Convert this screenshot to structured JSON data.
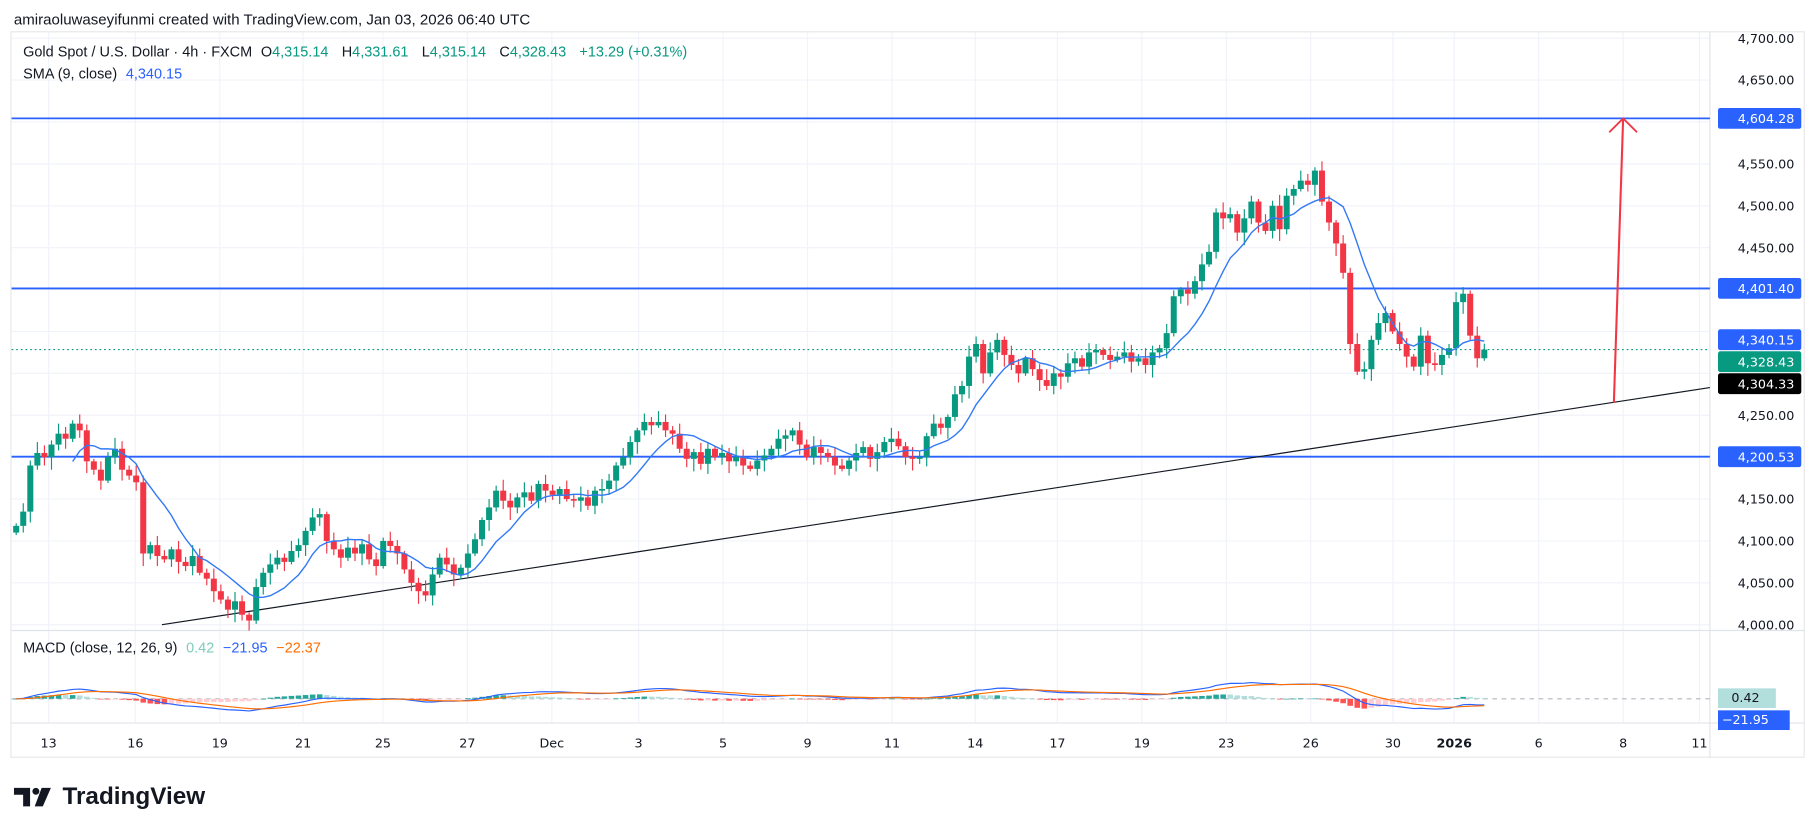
{
  "credit": "amiraoluwaseyifunmi created with TradingView.com, Jan 03, 2026 06:40 UTC",
  "legend": {
    "symbol": "Gold Spot / U.S. Dollar · 4h · FXCM",
    "o_label": "O",
    "o": "4,315.14",
    "h_label": "H",
    "h": "4,331.61",
    "l_label": "L",
    "l": "4,315.14",
    "c_label": "C",
    "c": "4,328.43",
    "change": "+13.29 (+0.31%)",
    "sma_label": "SMA (9, close)",
    "sma_value": "4,340.15",
    "macd_label": "MACD (close, 12, 26, 9)",
    "macd_hist": "0.42",
    "macd_line": "−21.95",
    "macd_signal": "−22.37"
  },
  "brand": "TradingView",
  "colors": {
    "up": "#089981",
    "down": "#f23645",
    "level": "#2962ff",
    "sma": "#3179f5",
    "macd": "#2962ff",
    "signal": "#ff6d00",
    "arrow": "#f23645",
    "trendline": "#131722"
  },
  "chart_data": {
    "type": "candlestick",
    "interval": "4h",
    "ylim": [
      4000,
      4700
    ],
    "grid": true,
    "y_ticks": [
      "4,700.00",
      "4,650.00",
      "4,550.00",
      "4,500.00",
      "4,450.00",
      "4,250.00",
      "4,150.00",
      "4,100.00",
      "4,050.00",
      "4,000.00"
    ],
    "x_ticks": [
      "13",
      "16",
      "19",
      "21",
      "25",
      "27",
      "Dec",
      "3",
      "5",
      "9",
      "11",
      "14",
      "17",
      "19",
      "23",
      "26",
      "30",
      "2026",
      "6",
      "8",
      "11"
    ],
    "closes": [
      4118,
      4135,
      4190,
      4205,
      4200,
      4215,
      4228,
      4222,
      4240,
      4232,
      4195,
      4185,
      4172,
      4200,
      4210,
      4185,
      4178,
      4170,
      4085,
      4095,
      4082,
      4078,
      4090,
      4075,
      4070,
      4082,
      4062,
      4055,
      4040,
      4030,
      4018,
      4028,
      4012,
      4005,
      4045,
      4062,
      4072,
      4080,
      4075,
      4088,
      4095,
      4112,
      4128,
      4132,
      4100,
      4090,
      4080,
      4092,
      4085,
      4096,
      4078,
      4070,
      4100,
      4094,
      4085,
      4066,
      4050,
      4040,
      4035,
      4060,
      4080,
      4072,
      4060,
      4068,
      4085,
      4102,
      4125,
      4140,
      4160,
      4148,
      4140,
      4152,
      4158,
      4148,
      4168,
      4160,
      4155,
      4162,
      4150,
      4148,
      4152,
      4142,
      4160,
      4162,
      4172,
      4190,
      4200,
      4218,
      4232,
      4242,
      4238,
      4242,
      4232,
      4228,
      4210,
      4198,
      4206,
      4192,
      4210,
      4200,
      4205,
      4195,
      4200,
      4190,
      4186,
      4196,
      4202,
      4210,
      4222,
      4226,
      4232,
      4215,
      4200,
      4212,
      4205,
      4200,
      4190,
      4186,
      4196,
      4205,
      4212,
      4198,
      4206,
      4218,
      4222,
      4213,
      4200,
      4198,
      4200,
      4225,
      4240,
      4235,
      4248,
      4275,
      4285,
      4320,
      4335,
      4300,
      4325,
      4340,
      4322,
      4310,
      4300,
      4318,
      4305,
      4292,
      4285,
      4300,
      4296,
      4312,
      4318,
      4308,
      4325,
      4328,
      4322,
      4316,
      4320,
      4325,
      4314,
      4318,
      4310,
      4325,
      4330,
      4348,
      4392,
      4400,
      4395,
      4410,
      4430,
      4445,
      4492,
      4485,
      4490,
      4468,
      4485,
      4505,
      4480,
      4470,
      4500,
      4472,
      4512,
      4520,
      4530,
      4525,
      4542,
      4505,
      4480,
      4455,
      4420,
      4335,
      4302,
      4305,
      4340,
      4360,
      4372,
      4350,
      4335,
      4320,
      4308,
      4345,
      4312,
      4310,
      4322,
      4330,
      4385,
      4395,
      4345,
      4318,
      4328.43
    ],
    "sma_period": 9,
    "macd_params": [
      12,
      26,
      9
    ],
    "levels": [
      {
        "price": 4604.28,
        "label": "4,604.28"
      },
      {
        "price": 4401.4,
        "label": "4,401.40"
      },
      {
        "price": 4200.53,
        "label": "4,200.53"
      }
    ],
    "sma_tag": {
      "price": 4340.15,
      "label": "4,340.15"
    },
    "last_price": {
      "price": 4328.43,
      "label": "4,328.43"
    },
    "trendline": {
      "start_price": 4000,
      "end_price": 4283,
      "tag_price": 4304.33,
      "label": "4,304.33"
    },
    "arrow": {
      "from_price": 4265,
      "to_price": 4604.28
    },
    "macd_tags": {
      "hist": "0.42",
      "macd": "−21.95"
    }
  }
}
